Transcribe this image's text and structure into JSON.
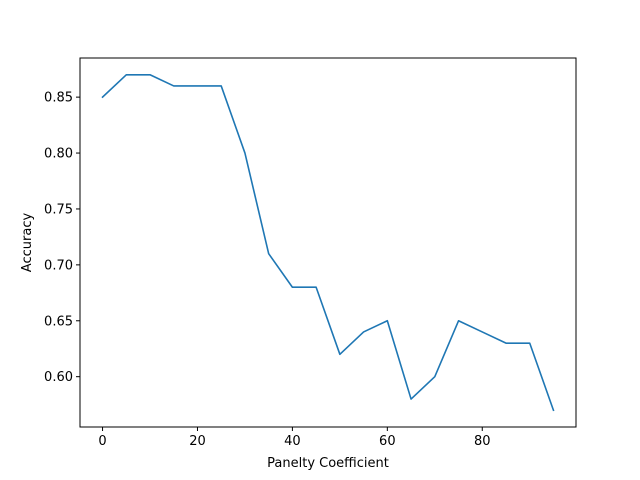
{
  "chart_data": {
    "type": "line",
    "title": "",
    "xlabel": "Panelty Coefficient",
    "ylabel": "Accuracy",
    "xlim": [
      -4.75,
      99.75
    ],
    "ylim": [
      0.555,
      0.885
    ],
    "xticks": [
      0,
      20,
      40,
      60,
      80
    ],
    "xtick_labels": [
      "0",
      "20",
      "40",
      "60",
      "80"
    ],
    "yticks": [
      0.6,
      0.65,
      0.7,
      0.75,
      0.8,
      0.85
    ],
    "ytick_labels": [
      "0.60",
      "0.65",
      "0.70",
      "0.75",
      "0.80",
      "0.85"
    ],
    "grid": false,
    "series": [
      {
        "color": "#1f77b4",
        "x": [
          0,
          5,
          10,
          15,
          20,
          25,
          30,
          35,
          40,
          45,
          50,
          55,
          60,
          65,
          70,
          75,
          80,
          85,
          90,
          95
        ],
        "y": [
          0.85,
          0.87,
          0.87,
          0.86,
          0.86,
          0.86,
          0.8,
          0.71,
          0.68,
          0.68,
          0.62,
          0.64,
          0.65,
          0.58,
          0.6,
          0.65,
          0.64,
          0.63,
          0.63,
          0.57
        ]
      }
    ]
  }
}
